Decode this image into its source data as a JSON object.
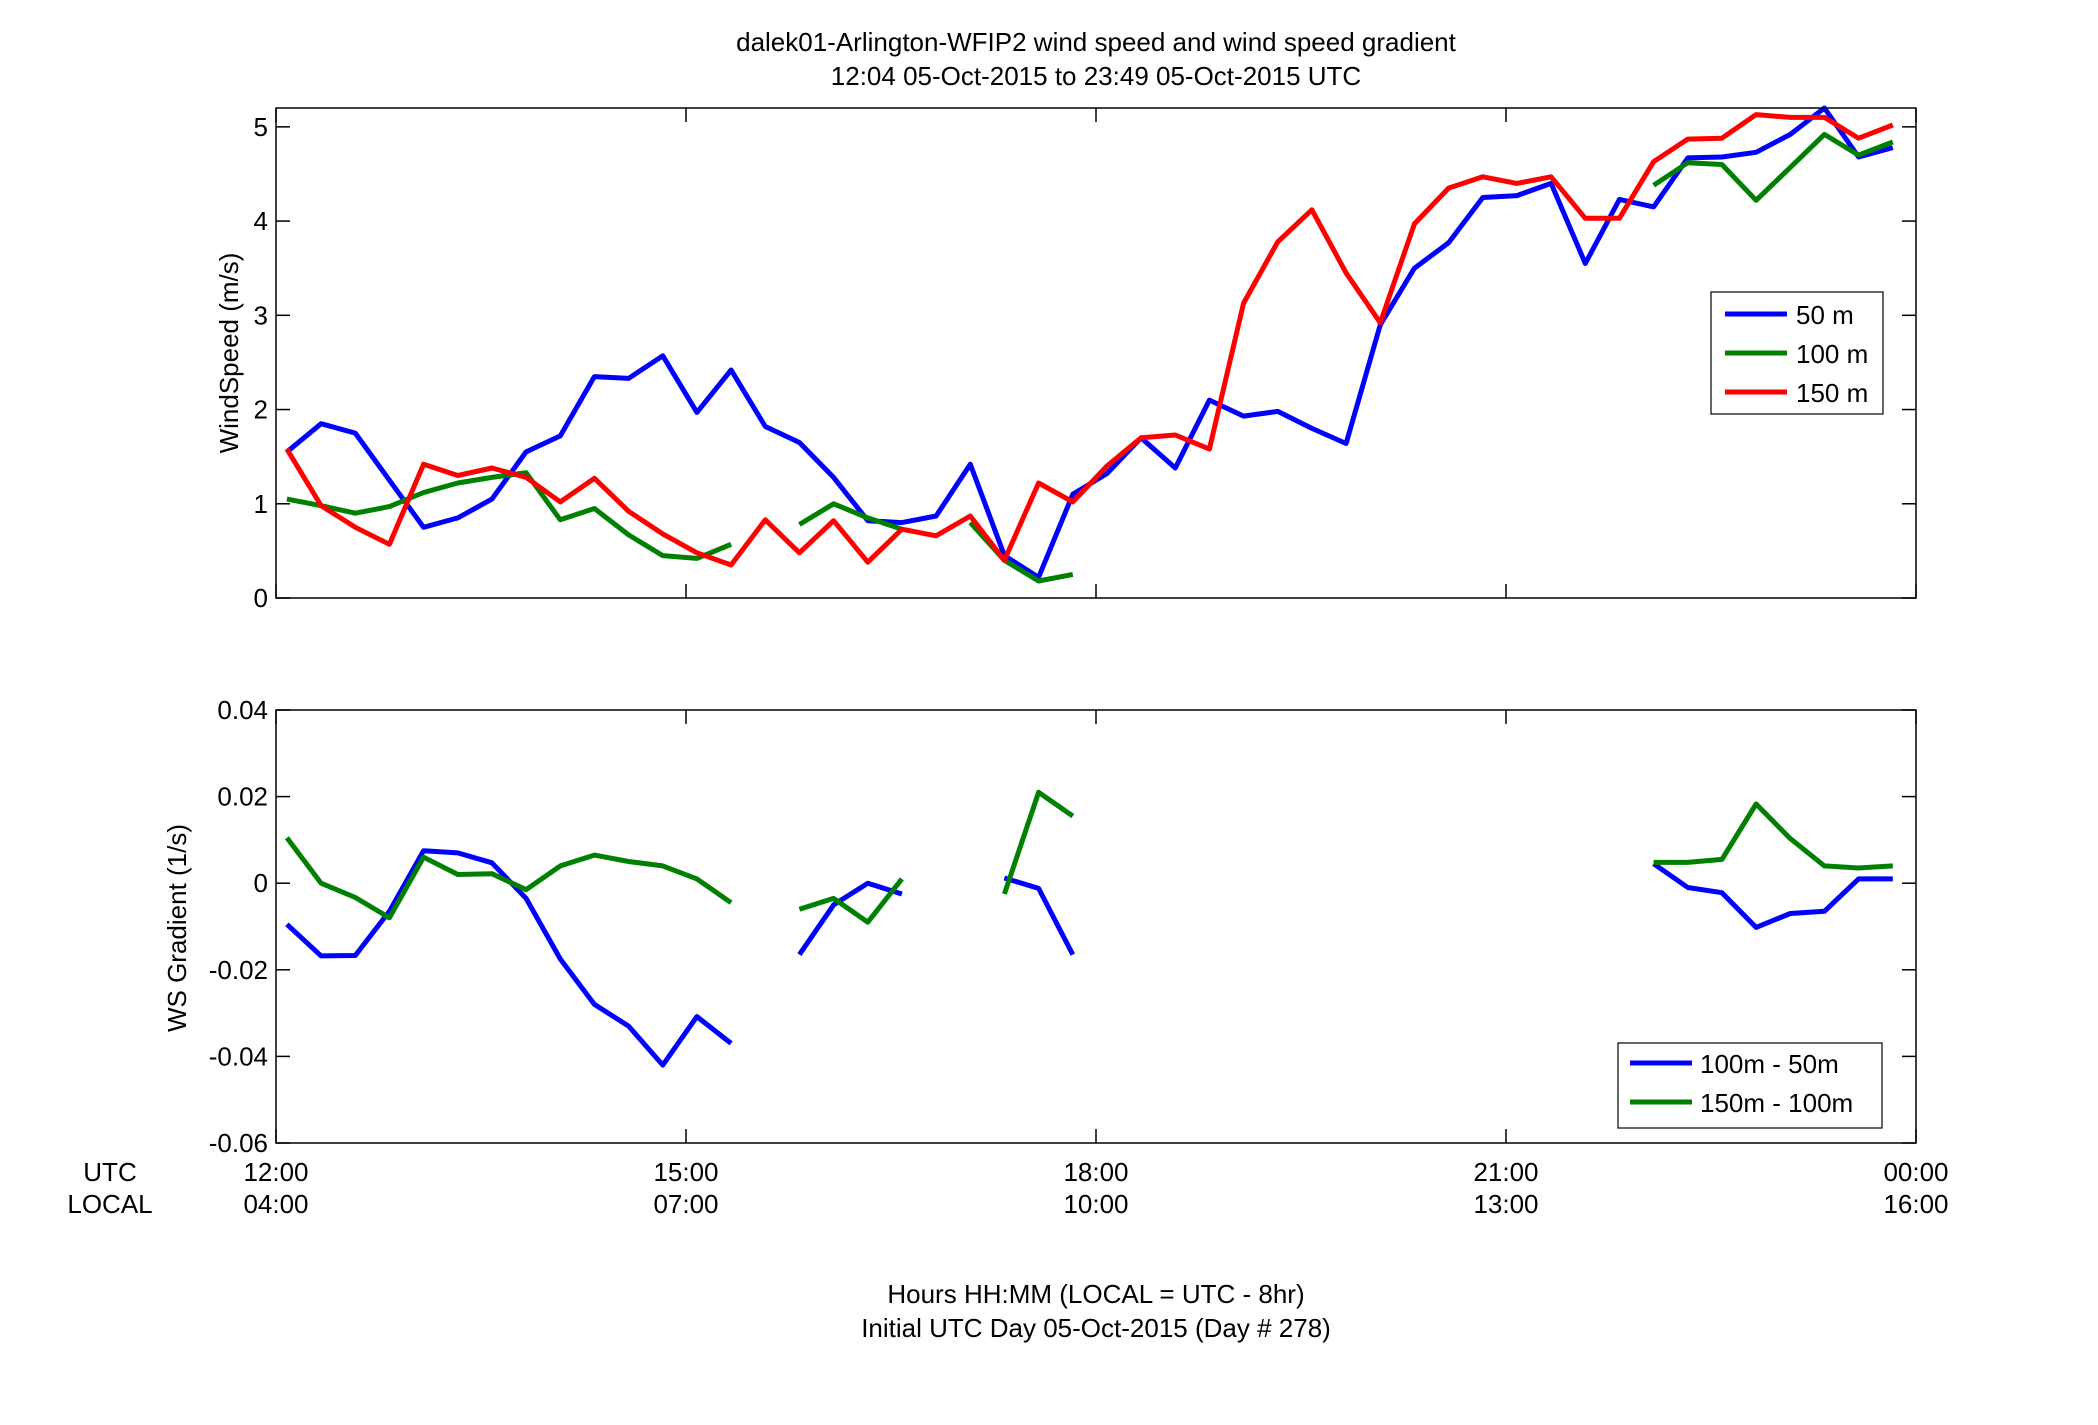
{
  "figure": {
    "title_line1": "dalek01-Arlington-WFIP2  wind speed and wind speed gradient",
    "title_line2": "12:04 05-Oct-2015 to 23:49 05-Oct-2015  UTC",
    "row_label_utc": "UTC",
    "row_label_local": "LOCAL",
    "xlabel_line1": "Hours HH:MM  (LOCAL = UTC - 8hr)",
    "xlabel_line2": "Initial UTC Day 05-Oct-2015 (Day # 278)",
    "x_ticks": [
      {
        "x": 0,
        "utc": "12:00",
        "local": "04:00"
      },
      {
        "x": 3,
        "utc": "15:00",
        "local": "07:00"
      },
      {
        "x": 6,
        "utc": "18:00",
        "local": "10:00"
      },
      {
        "x": 9,
        "utc": "21:00",
        "local": "13:00"
      },
      {
        "x": 12,
        "utc": "00:00",
        "local": "16:00"
      }
    ]
  },
  "chart_data": [
    {
      "type": "line",
      "ylabel": "WindSpeed (m/s)",
      "xlim": [
        0,
        12
      ],
      "ylim": [
        0,
        5.2
      ],
      "y_ticks": [
        0,
        1,
        2,
        3,
        4,
        5
      ],
      "y_tick_labels": [
        "0",
        "1",
        "2",
        "3",
        "4",
        "5"
      ],
      "grid": false,
      "legend_position": "right",
      "series": [
        {
          "name": "50 m",
          "color": "#0000ff",
          "x": [
            0.08,
            0.33,
            0.58,
            0.83,
            1.08,
            1.33,
            1.58,
            1.83,
            2.08,
            2.33,
            2.58,
            2.83,
            3.08,
            3.33,
            3.58,
            3.83,
            4.08,
            4.33,
            4.58,
            4.83,
            5.08,
            5.33,
            5.58,
            5.83,
            6.08,
            6.33,
            6.58,
            6.83,
            7.08,
            7.33,
            7.58,
            7.83,
            8.08,
            8.33,
            8.58,
            8.83,
            9.08,
            9.33,
            9.58,
            9.83,
            10.08,
            10.33,
            10.58,
            10.83,
            11.08,
            11.33,
            11.58,
            11.83
          ],
          "y": [
            1.55,
            1.85,
            1.75,
            1.25,
            0.75,
            0.85,
            1.05,
            1.55,
            1.72,
            2.35,
            2.33,
            2.57,
            1.97,
            2.42,
            1.82,
            1.65,
            1.28,
            0.82,
            0.8,
            0.87,
            1.42,
            0.45,
            0.22,
            1.1,
            1.32,
            1.7,
            1.38,
            2.1,
            1.93,
            1.98,
            1.8,
            1.64,
            2.9,
            3.5,
            3.77,
            4.25,
            4.27,
            4.4,
            3.55,
            4.23,
            4.15,
            4.67,
            4.68,
            4.73,
            4.92,
            5.2,
            4.68,
            4.78
          ]
        },
        {
          "name": "100 m",
          "color": "#008000",
          "x": [
            0.08,
            0.33,
            0.58,
            0.83,
            1.08,
            1.33,
            1.58,
            1.83,
            2.08,
            2.33,
            2.58,
            2.83,
            3.08,
            3.33,
            null,
            3.83,
            4.08,
            4.33,
            4.58,
            null,
            5.08,
            5.33,
            5.58,
            5.83,
            null,
            10.08,
            10.33,
            10.58,
            10.83,
            11.08,
            11.33,
            11.58,
            11.83
          ],
          "y": [
            1.05,
            0.98,
            0.9,
            0.97,
            1.12,
            1.22,
            1.28,
            1.33,
            0.83,
            0.95,
            0.67,
            0.45,
            0.42,
            0.57,
            null,
            0.78,
            1.0,
            0.85,
            0.73,
            null,
            0.8,
            0.4,
            0.18,
            0.25,
            null,
            4.38,
            4.62,
            4.6,
            4.22,
            4.57,
            4.92,
            4.7,
            4.84
          ]
        },
        {
          "name": "150 m",
          "color": "#ff0000",
          "x": [
            0.08,
            0.33,
            0.58,
            0.83,
            1.08,
            1.33,
            1.58,
            1.83,
            2.08,
            2.33,
            2.58,
            2.83,
            3.08,
            3.33,
            3.58,
            3.83,
            4.08,
            4.33,
            4.58,
            4.83,
            5.08,
            5.33,
            5.58,
            5.83,
            6.08,
            6.33,
            6.58,
            6.83,
            7.08,
            7.33,
            7.58,
            7.83,
            8.08,
            8.33,
            8.58,
            8.83,
            9.08,
            9.33,
            9.58,
            9.83,
            10.08,
            10.33,
            10.58,
            10.83,
            11.08,
            11.33,
            11.58,
            11.83
          ],
          "y": [
            1.58,
            0.98,
            0.75,
            0.57,
            1.42,
            1.3,
            1.38,
            1.28,
            1.02,
            1.27,
            0.92,
            0.68,
            0.48,
            0.35,
            0.83,
            0.48,
            0.82,
            0.38,
            0.73,
            0.66,
            0.87,
            0.4,
            1.22,
            1.02,
            1.4,
            1.7,
            1.73,
            1.58,
            3.13,
            3.78,
            4.12,
            3.45,
            2.92,
            3.97,
            4.35,
            4.47,
            4.4,
            4.47,
            4.03,
            4.03,
            4.63,
            4.87,
            4.88,
            5.13,
            5.1,
            5.1,
            4.88,
            5.02
          ]
        }
      ]
    },
    {
      "type": "line",
      "ylabel": "WS Gradient (1/s)",
      "xlim": [
        0,
        12
      ],
      "ylim": [
        -0.06,
        0.04
      ],
      "y_ticks": [
        -0.06,
        -0.04,
        -0.02,
        0,
        0.02,
        0.04
      ],
      "y_tick_labels": [
        "-0.06",
        "-0.04",
        "-0.02",
        "0",
        "0.02",
        "0.04"
      ],
      "grid": false,
      "legend_position": "bottom-right",
      "series": [
        {
          "name": "100m - 50m",
          "color": "#0000ff",
          "x": [
            0.08,
            0.33,
            0.58,
            0.83,
            1.08,
            1.33,
            1.58,
            1.83,
            2.08,
            2.33,
            2.58,
            2.83,
            3.08,
            3.33,
            null,
            3.83,
            4.08,
            4.33,
            4.58,
            null,
            5.33,
            5.58,
            5.83,
            null,
            10.08,
            10.33,
            10.58,
            10.83,
            11.08,
            11.33,
            11.58,
            11.83
          ],
          "y": [
            -0.0095,
            -0.0168,
            -0.0167,
            -0.0065,
            0.0075,
            0.007,
            0.0047,
            -0.0035,
            -0.0175,
            -0.028,
            -0.033,
            -0.042,
            -0.0308,
            -0.037,
            null,
            -0.0165,
            -0.005,
            0.0,
            -0.0025,
            null,
            0.0012,
            -0.0012,
            -0.0165,
            null,
            0.0045,
            -0.001,
            -0.0022,
            -0.0102,
            -0.007,
            -0.0065,
            0.001,
            0.001
          ]
        },
        {
          "name": "150m - 100m",
          "color": "#008000",
          "x": [
            0.08,
            0.33,
            0.58,
            0.83,
            1.08,
            1.33,
            1.58,
            1.83,
            2.08,
            2.33,
            2.58,
            2.83,
            3.08,
            3.33,
            null,
            3.83,
            4.08,
            4.33,
            4.58,
            null,
            5.33,
            5.58,
            5.83,
            null,
            10.08,
            10.33,
            10.58,
            10.83,
            11.08,
            11.33,
            11.58,
            11.83
          ],
          "y": [
            0.0105,
            0.0,
            -0.0033,
            -0.008,
            0.006,
            0.002,
            0.0022,
            -0.0015,
            0.004,
            0.0065,
            0.005,
            0.004,
            0.001,
            -0.0045,
            null,
            -0.006,
            -0.0035,
            -0.009,
            0.001,
            null,
            -0.0025,
            0.021,
            0.0155,
            null,
            0.0048,
            0.0048,
            0.0055,
            0.0183,
            0.0103,
            0.004,
            0.0035,
            0.004
          ]
        }
      ]
    }
  ]
}
